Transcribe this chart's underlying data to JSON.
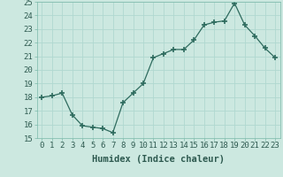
{
  "x": [
    0,
    1,
    2,
    3,
    4,
    5,
    6,
    7,
    8,
    9,
    10,
    11,
    12,
    13,
    14,
    15,
    16,
    17,
    18,
    19,
    20,
    21,
    22,
    23
  ],
  "y": [
    18.0,
    18.1,
    18.3,
    16.7,
    15.9,
    15.8,
    15.7,
    15.4,
    17.6,
    18.3,
    19.0,
    20.9,
    21.2,
    21.5,
    21.5,
    22.2,
    23.3,
    23.5,
    23.6,
    24.9,
    23.3,
    22.5,
    21.6,
    20.9
  ],
  "xlabel": "Humidex (Indice chaleur)",
  "xlim": [
    -0.5,
    23.5
  ],
  "ylim": [
    15,
    25
  ],
  "yticks": [
    15,
    16,
    17,
    18,
    19,
    20,
    21,
    22,
    23,
    24,
    25
  ],
  "xticks": [
    0,
    1,
    2,
    3,
    4,
    5,
    6,
    7,
    8,
    9,
    10,
    11,
    12,
    13,
    14,
    15,
    16,
    17,
    18,
    19,
    20,
    21,
    22,
    23
  ],
  "line_color": "#2e6b5e",
  "marker": "+",
  "marker_size": 4,
  "marker_linewidth": 1.2,
  "bg_color": "#cce8e0",
  "grid_color": "#b0d8d0",
  "tick_label_fontsize": 6.5,
  "xlabel_fontsize": 7.5
}
